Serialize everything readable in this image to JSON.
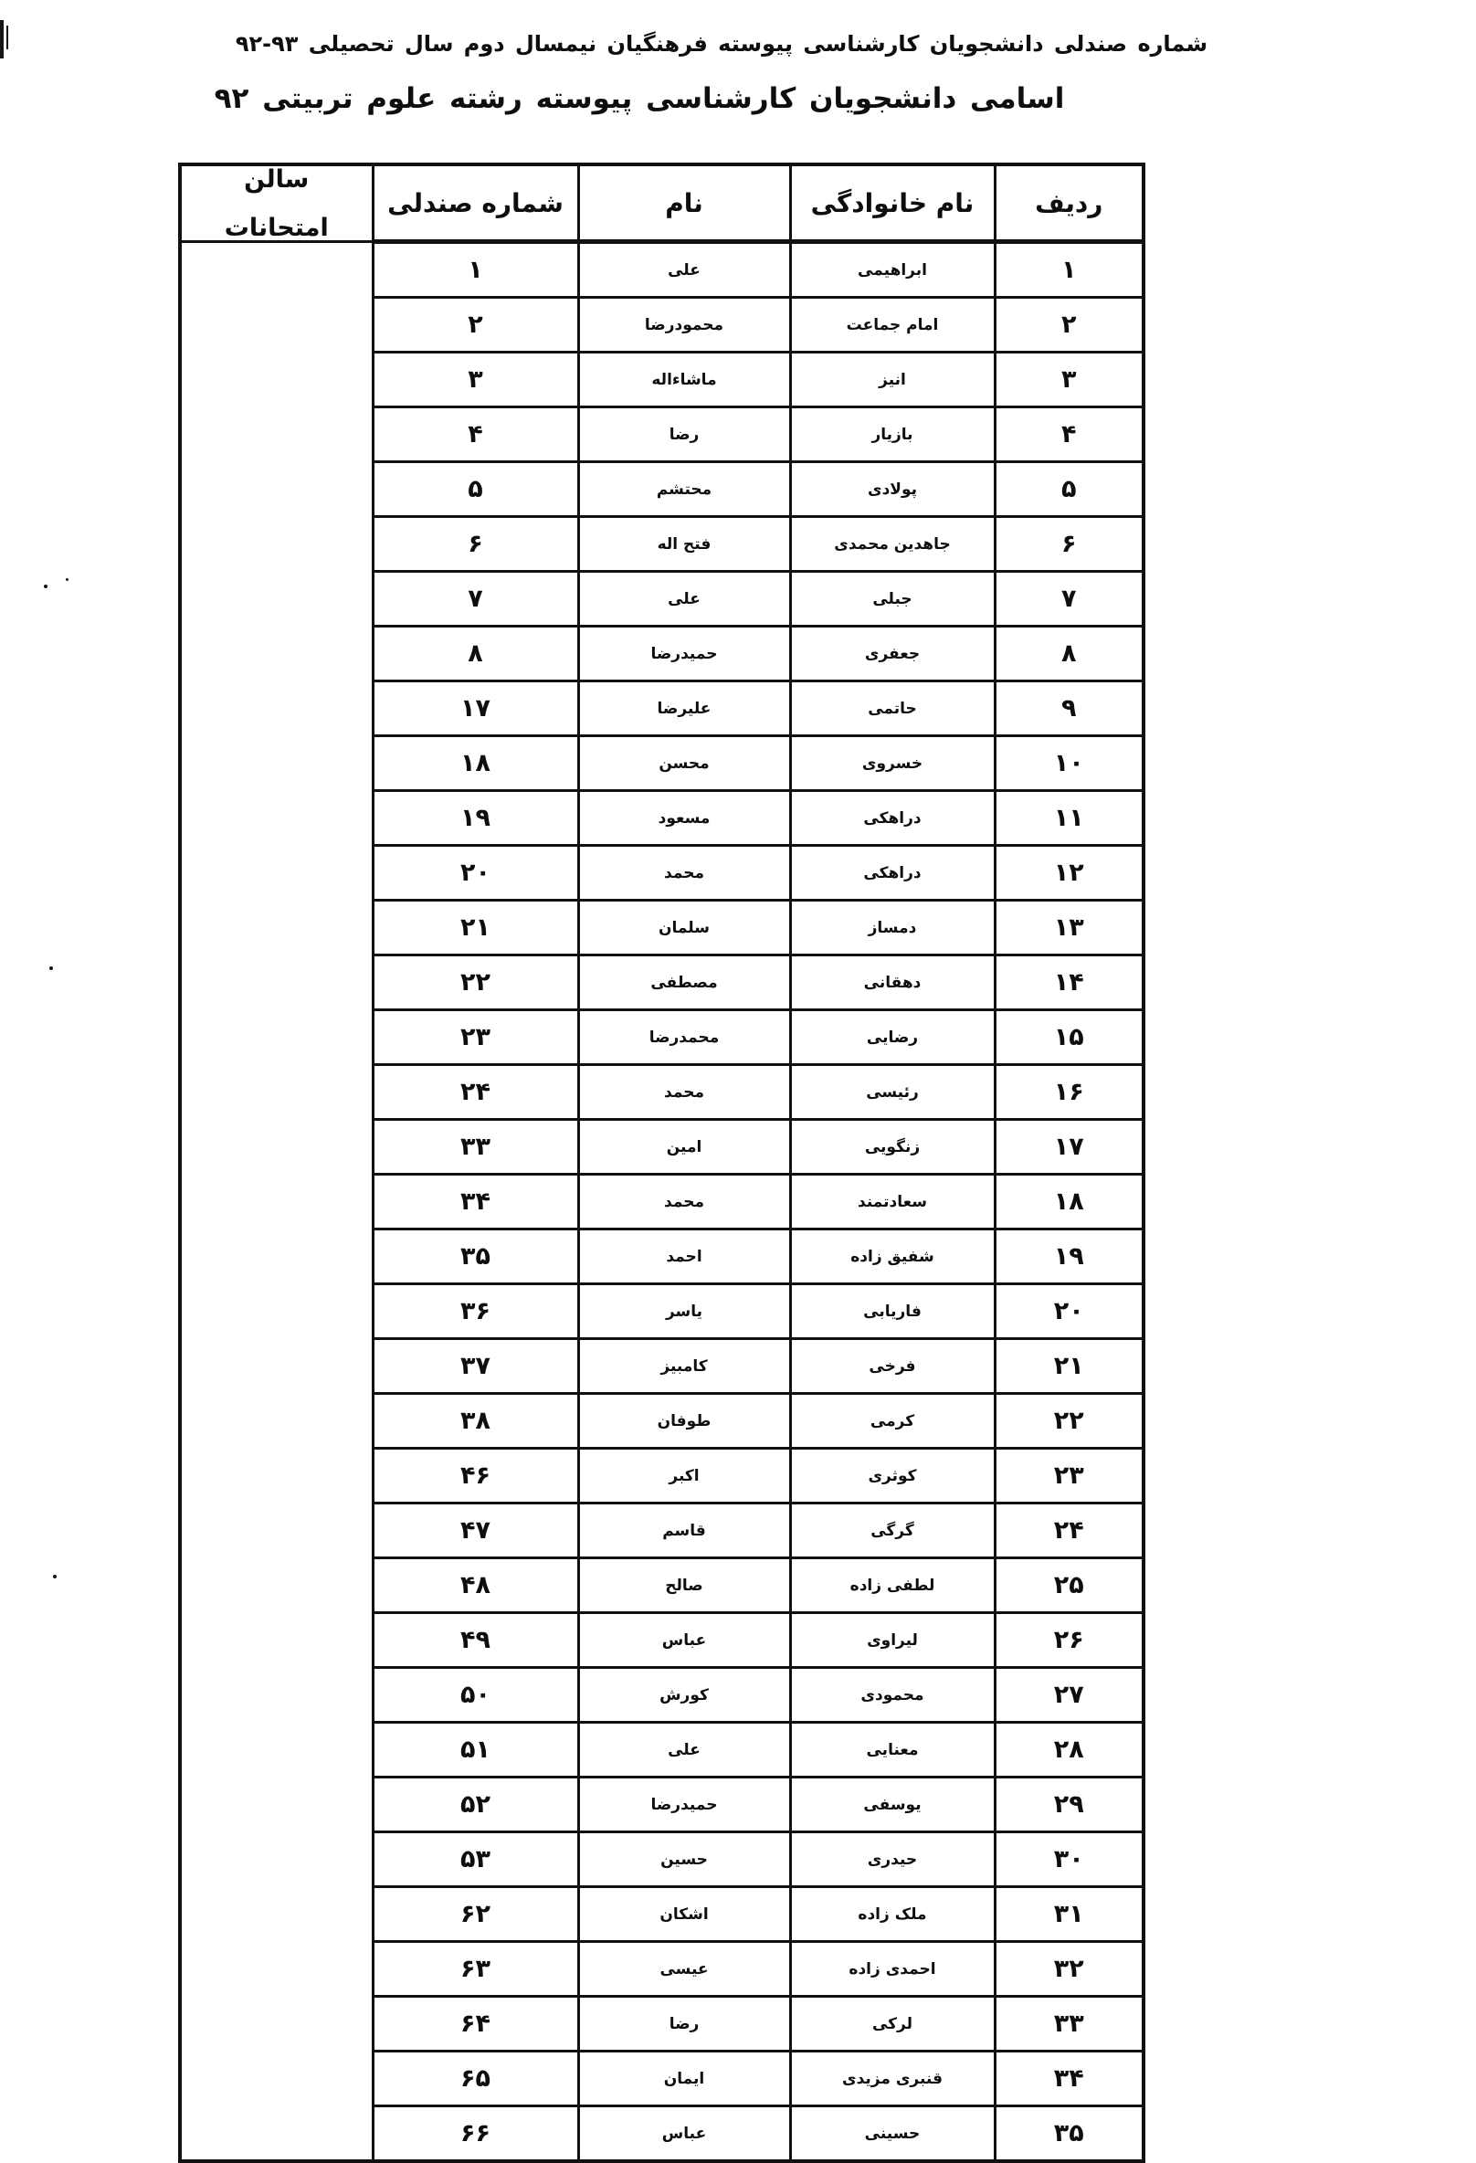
{
  "titles": {
    "line1": "شماره صندلی دانشجویان کارشناسی پیوسته فرهنگیان نیمسال دوم سال تحصیلی",
    "line1_year": "۹۲-۹۳",
    "line2": "اسامی دانشجویان کارشناسی پیوسته رشته علوم تربیتی ۹۲"
  },
  "table": {
    "headers": {
      "radif": "ردیف",
      "family": "نام خانوادگی",
      "name": "نام",
      "seat": "شماره صندلی"
    },
    "hall": {
      "line1": "سالن",
      "line2": "امتحانات"
    },
    "rows": [
      {
        "radif": "۱",
        "family": "ابراهیمی",
        "name": "علی",
        "seat": "۱"
      },
      {
        "radif": "۲",
        "family": "امام جماعت",
        "name": "محمودرضا",
        "seat": "۲"
      },
      {
        "radif": "۳",
        "family": "انیز",
        "name": "ماشاءاله",
        "seat": "۳"
      },
      {
        "radif": "۴",
        "family": "بازیار",
        "name": "رضا",
        "seat": "۴"
      },
      {
        "radif": "۵",
        "family": "پولادی",
        "name": "محتشم",
        "seat": "۵"
      },
      {
        "radif": "۶",
        "family": "جاهدین محمدی",
        "name": "فتح اله",
        "seat": "۶"
      },
      {
        "radif": "۷",
        "family": "جبلی",
        "name": "علی",
        "seat": "۷"
      },
      {
        "radif": "۸",
        "family": "جعفری",
        "name": "حمیدرضا",
        "seat": "۸"
      },
      {
        "radif": "۹",
        "family": "حاتمی",
        "name": "علیرضا",
        "seat": "۱۷"
      },
      {
        "radif": "۱۰",
        "family": "خسروی",
        "name": "محسن",
        "seat": "۱۸"
      },
      {
        "radif": "۱۱",
        "family": "دراهکی",
        "name": "مسعود",
        "seat": "۱۹"
      },
      {
        "radif": "۱۲",
        "family": "دراهکی",
        "name": "محمد",
        "seat": "۲۰"
      },
      {
        "radif": "۱۳",
        "family": "دمساز",
        "name": "سلمان",
        "seat": "۲۱"
      },
      {
        "radif": "۱۴",
        "family": "دهقانی",
        "name": "مصطفی",
        "seat": "۲۲"
      },
      {
        "radif": "۱۵",
        "family": "رضایی",
        "name": "محمدرضا",
        "seat": "۲۳"
      },
      {
        "radif": "۱۶",
        "family": "رئیسی",
        "name": "محمد",
        "seat": "۲۴"
      },
      {
        "radif": "۱۷",
        "family": "زنگویی",
        "name": "امین",
        "seat": "۳۳"
      },
      {
        "radif": "۱۸",
        "family": "سعادتمند",
        "name": "محمد",
        "seat": "۳۴"
      },
      {
        "radif": "۱۹",
        "family": "شفیق زاده",
        "name": "احمد",
        "seat": "۳۵"
      },
      {
        "radif": "۲۰",
        "family": "فاریابی",
        "name": "یاسر",
        "seat": "۳۶"
      },
      {
        "radif": "۲۱",
        "family": "فرخی",
        "name": "کامبیز",
        "seat": "۳۷"
      },
      {
        "radif": "۲۲",
        "family": "کرمی",
        "name": "طوفان",
        "seat": "۳۸"
      },
      {
        "radif": "۲۳",
        "family": "کوثری",
        "name": "اکبر",
        "seat": "۴۶"
      },
      {
        "radif": "۲۴",
        "family": "گرگی",
        "name": "قاسم",
        "seat": "۴۷"
      },
      {
        "radif": "۲۵",
        "family": "لطفی زاده",
        "name": "صالح",
        "seat": "۴۸"
      },
      {
        "radif": "۲۶",
        "family": "لیراوی",
        "name": "عباس",
        "seat": "۴۹"
      },
      {
        "radif": "۲۷",
        "family": "محمودی",
        "name": "کورش",
        "seat": "۵۰"
      },
      {
        "radif": "۲۸",
        "family": "معنایی",
        "name": "علی",
        "seat": "۵۱"
      },
      {
        "radif": "۲۹",
        "family": "یوسفی",
        "name": "حمیدرضا",
        "seat": "۵۲"
      },
      {
        "radif": "۳۰",
        "family": "حیدری",
        "name": "حسین",
        "seat": "۵۳"
      },
      {
        "radif": "۳۱",
        "family": "ملک زاده",
        "name": "اشکان",
        "seat": "۶۲"
      },
      {
        "radif": "۳۲",
        "family": "احمدی زاده",
        "name": "عیسی",
        "seat": "۶۳"
      },
      {
        "radif": "۳۳",
        "family": "لرکی",
        "name": "رضا",
        "seat": "۶۴"
      },
      {
        "radif": "۳۴",
        "family": "قنبری مزیدی",
        "name": "ایمان",
        "seat": "۶۵"
      },
      {
        "radif": "۳۵",
        "family": "حسینی",
        "name": "عباس",
        "seat": "۶۶"
      }
    ]
  }
}
